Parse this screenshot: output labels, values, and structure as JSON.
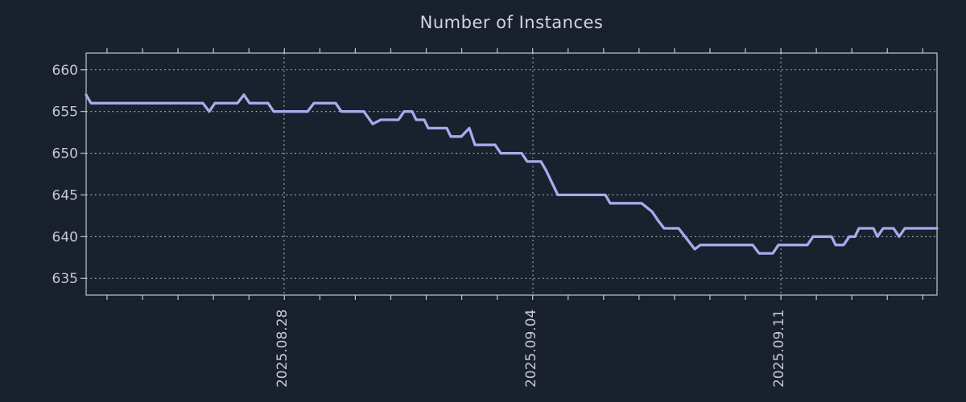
{
  "title": "Number of Instances",
  "colors": {
    "background": "#19202e",
    "title_text": "#d3d6da",
    "label_text": "#c6cacf",
    "grid": "#b4b9bf",
    "border": "#c2c6cb",
    "line": "#a8aaec"
  },
  "chart_data": {
    "type": "line",
    "title": "Number of Instances",
    "xlabel": "",
    "ylabel": "",
    "legend": "none",
    "grid": "dotted",
    "ylim": [
      633,
      662
    ],
    "y_ticks": [
      660,
      655,
      650,
      645,
      640,
      635
    ],
    "x_ticks": [
      {
        "label": "2025.08.28",
        "pos_pct": 23.27
      },
      {
        "label": "2025.09.04",
        "pos_pct": 52.51
      },
      {
        "label": "2025.09.11",
        "pos_pct": 81.65
      }
    ],
    "minor_ticks": {
      "start_pct": 2.46,
      "step_pct": 4.168
    },
    "series": [
      {
        "name": "instances",
        "color": "#a8aaec",
        "points": [
          [
            0,
            657
          ],
          [
            0.57,
            656
          ],
          [
            13.72,
            656
          ],
          [
            14.47,
            655
          ],
          [
            15.14,
            656
          ],
          [
            17.79,
            656
          ],
          [
            18.54,
            657
          ],
          [
            19.21,
            656
          ],
          [
            21.38,
            656
          ],
          [
            22.04,
            655
          ],
          [
            26.02,
            655
          ],
          [
            26.77,
            656
          ],
          [
            29.33,
            656
          ],
          [
            29.99,
            655
          ],
          [
            32.64,
            655
          ],
          [
            33.68,
            653.5
          ],
          [
            34.63,
            654
          ],
          [
            36.71,
            654
          ],
          [
            37.37,
            655
          ],
          [
            38.32,
            655
          ],
          [
            38.79,
            654
          ],
          [
            39.73,
            654
          ],
          [
            40.21,
            653
          ],
          [
            42.38,
            653
          ],
          [
            42.86,
            652
          ],
          [
            44.09,
            652
          ],
          [
            45.03,
            653
          ],
          [
            45.7,
            651
          ],
          [
            48.06,
            651
          ],
          [
            48.72,
            650
          ],
          [
            51.18,
            650
          ],
          [
            51.84,
            649
          ],
          [
            53.45,
            649
          ],
          [
            54.02,
            648
          ],
          [
            54.49,
            647
          ],
          [
            54.97,
            646
          ],
          [
            55.44,
            645
          ],
          [
            61.02,
            645
          ],
          [
            61.59,
            644
          ],
          [
            65.28,
            644
          ],
          [
            66.51,
            643
          ],
          [
            67.17,
            642
          ],
          [
            67.93,
            641
          ],
          [
            69.63,
            641
          ],
          [
            71.52,
            638.5
          ],
          [
            72.19,
            639
          ],
          [
            78.34,
            639
          ],
          [
            79.09,
            638
          ],
          [
            80.7,
            638
          ],
          [
            81.36,
            639
          ],
          [
            84.77,
            639
          ],
          [
            85.43,
            640
          ],
          [
            87.61,
            640
          ],
          [
            88.08,
            639
          ],
          [
            89.03,
            639
          ],
          [
            89.69,
            640
          ],
          [
            90.35,
            640
          ],
          [
            90.82,
            641
          ],
          [
            92.53,
            641
          ],
          [
            93,
            640
          ],
          [
            93.66,
            641
          ],
          [
            94.89,
            641
          ],
          [
            95.55,
            640
          ],
          [
            96.22,
            641
          ],
          [
            100,
            641
          ]
        ]
      }
    ]
  }
}
